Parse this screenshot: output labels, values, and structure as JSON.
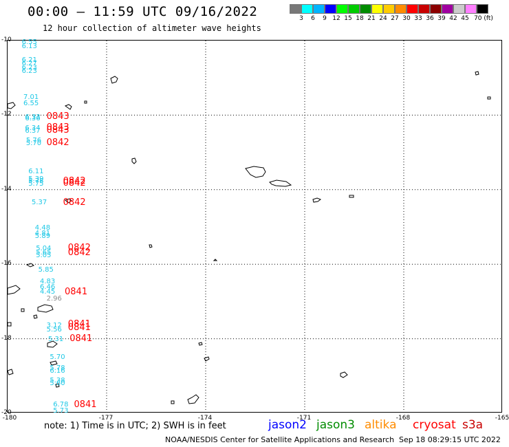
{
  "header": {
    "title": "00:00 – 11:59 UTC 09/16/2022",
    "subtitle": "12 hour collection of altimeter wave heights"
  },
  "color_scale": {
    "labels": [
      "3",
      "6",
      "9",
      "12",
      "15",
      "18",
      "21",
      "24",
      "27",
      "30",
      "33",
      "36",
      "39",
      "42",
      "45",
      "70 (ft)"
    ],
    "colors": [
      "#787878",
      "#00ffff",
      "#00b4ff",
      "#0000ff",
      "#00ff00",
      "#00cc00",
      "#008c00",
      "#ffff00",
      "#ffcc00",
      "#ff8c00",
      "#ff0000",
      "#c80000",
      "#8c0000",
      "#a000a0",
      "#cccccc",
      "#ff80ff",
      "#000000"
    ]
  },
  "axes": {
    "lat_labels": [
      "-10",
      "-12",
      "-14",
      "-16",
      "-18",
      "-20"
    ],
    "lon_labels": [
      "-180",
      "-177",
      "-174",
      "-171",
      "-168",
      "-165"
    ],
    "lon_range": [
      -180,
      -165
    ],
    "lat_range": [
      -20,
      -10
    ]
  },
  "observations": [
    {
      "text": "6.55",
      "lon": -179.55,
      "lat": -10.08,
      "gray": false
    },
    {
      "text": "6.13",
      "lon": -179.55,
      "lat": -10.18,
      "gray": false
    },
    {
      "text": "6.21",
      "lon": -179.55,
      "lat": -10.55,
      "gray": false
    },
    {
      "text": "6.27",
      "lon": -179.55,
      "lat": -10.65,
      "gray": false
    },
    {
      "text": "6.23",
      "lon": -179.55,
      "lat": -10.75,
      "gray": false
    },
    {
      "text": "6.23",
      "lon": -179.55,
      "lat": -10.85,
      "gray": false
    },
    {
      "text": "7.01",
      "lon": -179.5,
      "lat": -11.55,
      "gray": false
    },
    {
      "text": "6.55",
      "lon": -179.5,
      "lat": -11.72,
      "gray": false
    },
    {
      "text": "6.33",
      "lon": -179.45,
      "lat": -12.08,
      "gray": false
    },
    {
      "text": "6.36",
      "lon": -179.45,
      "lat": -12.13,
      "gray": false
    },
    {
      "text": "6.34",
      "lon": -179.45,
      "lat": -12.38,
      "gray": false
    },
    {
      "text": "6.37",
      "lon": -179.45,
      "lat": -12.45,
      "gray": false
    },
    {
      "text": "5.76",
      "lon": -179.42,
      "lat": -12.72,
      "gray": false
    },
    {
      "text": "5.70",
      "lon": -179.42,
      "lat": -12.79,
      "gray": false
    },
    {
      "text": "6.11",
      "lon": -179.35,
      "lat": -13.55,
      "gray": false
    },
    {
      "text": "5.39",
      "lon": -179.35,
      "lat": -13.74,
      "gray": false
    },
    {
      "text": "5.78",
      "lon": -179.35,
      "lat": -13.8,
      "gray": false
    },
    {
      "text": "5.75",
      "lon": -179.35,
      "lat": -13.87,
      "gray": false
    },
    {
      "text": "5.37",
      "lon": -179.25,
      "lat": -14.38,
      "gray": false
    },
    {
      "text": "4.48",
      "lon": -179.15,
      "lat": -15.05,
      "gray": false
    },
    {
      "text": "4.81",
      "lon": -179.15,
      "lat": -15.2,
      "gray": false
    },
    {
      "text": "5.89",
      "lon": -179.15,
      "lat": -15.28,
      "gray": false
    },
    {
      "text": "5.04",
      "lon": -179.12,
      "lat": -15.6,
      "gray": false
    },
    {
      "text": "5.65",
      "lon": -179.12,
      "lat": -15.72,
      "gray": false
    },
    {
      "text": "5.05",
      "lon": -179.12,
      "lat": -15.8,
      "gray": false
    },
    {
      "text": "5.85",
      "lon": -179.05,
      "lat": -16.18,
      "gray": false
    },
    {
      "text": "4.83",
      "lon": -179.0,
      "lat": -16.5,
      "gray": false
    },
    {
      "text": "6.46",
      "lon": -179.0,
      "lat": -16.65,
      "gray": false
    },
    {
      "text": "4.45",
      "lon": -179.0,
      "lat": -16.78,
      "gray": false
    },
    {
      "text": "2.96",
      "lon": -178.8,
      "lat": -16.95,
      "gray": true
    },
    {
      "text": "3.12",
      "lon": -178.8,
      "lat": -17.68,
      "gray": false
    },
    {
      "text": "5.56",
      "lon": -178.8,
      "lat": -17.78,
      "gray": false
    },
    {
      "text": "5.31",
      "lon": -178.75,
      "lat": -18.05,
      "gray": false
    },
    {
      "text": "5.70",
      "lon": -178.7,
      "lat": -18.52,
      "gray": false
    },
    {
      "text": "5.78",
      "lon": -178.7,
      "lat": -18.82,
      "gray": false
    },
    {
      "text": "6.16",
      "lon": -178.7,
      "lat": -18.9,
      "gray": false
    },
    {
      "text": "5.38",
      "lon": -178.7,
      "lat": -19.15,
      "gray": false
    },
    {
      "text": "5.60",
      "lon": -178.7,
      "lat": -19.22,
      "gray": false
    },
    {
      "text": "6.78",
      "lon": -178.6,
      "lat": -19.8,
      "gray": false
    },
    {
      "text": "5.73",
      "lon": -178.6,
      "lat": -19.97,
      "gray": false
    }
  ],
  "times": [
    {
      "text": "0843",
      "lon": -178.8,
      "lat": -12.05
    },
    {
      "text": "0843",
      "lon": -178.8,
      "lat": -12.35
    },
    {
      "text": "0843",
      "lon": -178.8,
      "lat": -12.42
    },
    {
      "text": "0842",
      "lon": -178.8,
      "lat": -12.75
    },
    {
      "text": "0842",
      "lon": -178.3,
      "lat": -13.78
    },
    {
      "text": "0842",
      "lon": -178.3,
      "lat": -13.84
    },
    {
      "text": "0842",
      "lon": -178.3,
      "lat": -14.35
    },
    {
      "text": "0842",
      "lon": -178.15,
      "lat": -15.58
    },
    {
      "text": "0842",
      "lon": -178.15,
      "lat": -15.7
    },
    {
      "text": "0841",
      "lon": -178.25,
      "lat": -16.75
    },
    {
      "text": "0841",
      "lon": -178.15,
      "lat": -17.62
    },
    {
      "text": "0841",
      "lon": -178.15,
      "lat": -17.72
    },
    {
      "text": "0841",
      "lon": -178.1,
      "lat": -18.0
    },
    {
      "text": "0841",
      "lon": -177.97,
      "lat": -19.77
    }
  ],
  "footer": {
    "note": "note:  1) Time is in UTC;  2) SWH is in feet",
    "satellites": [
      {
        "name": "jason2",
        "color": "#0000ff"
      },
      {
        "name": "jason3",
        "color": "#008c00"
      },
      {
        "name": "altika",
        "color": "#ff8c00"
      },
      {
        "name": "cryosat",
        "color": "#ff0000"
      },
      {
        "name": "s3a",
        "color": "#c80000"
      }
    ],
    "credit": "NOAA/NESDIS Center for Satellite Applications and Research",
    "stamp": "Sep 18 08:29:15 UTC 2022"
  }
}
